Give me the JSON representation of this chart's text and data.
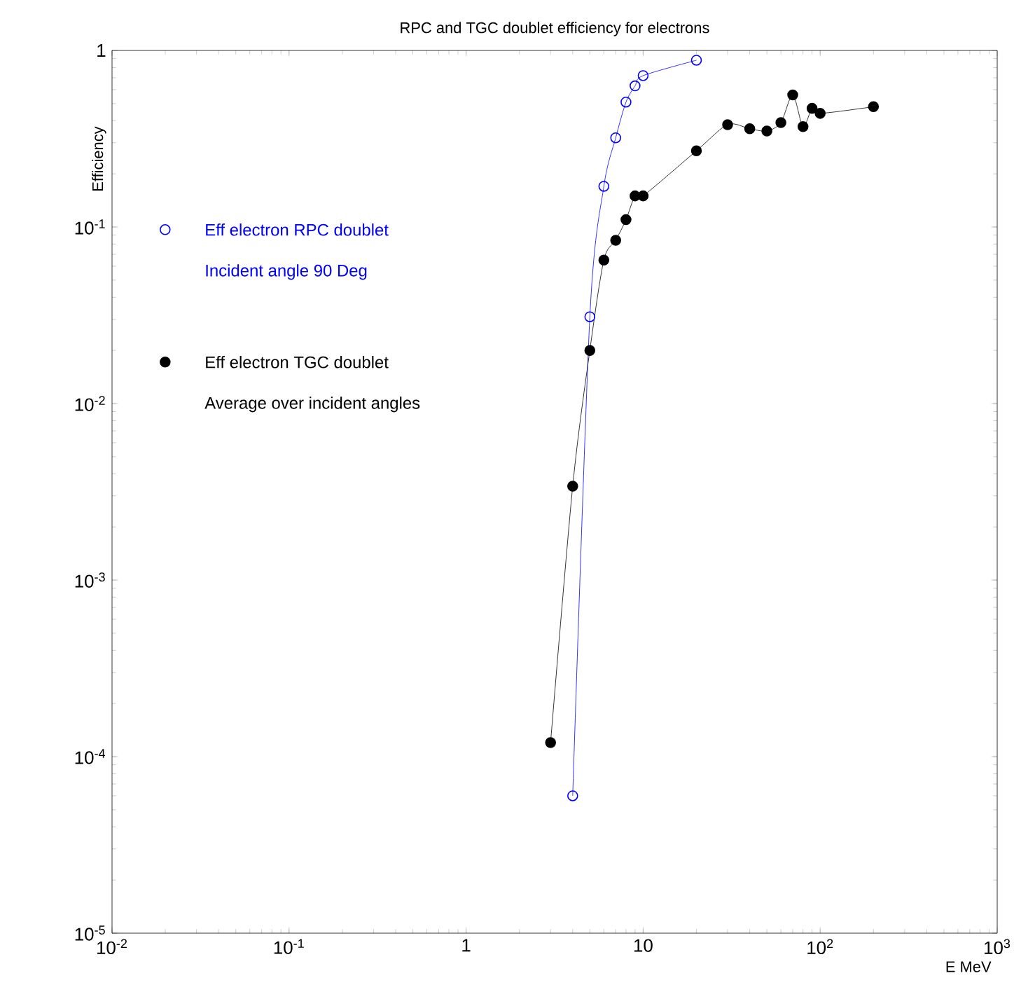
{
  "chart_data": {
    "type": "line",
    "title": "RPC and TGC doublet efficiency for electrons",
    "xlabel": "E MeV",
    "ylabel": "Efficiency",
    "log": "xy",
    "xlim": [
      0.01,
      1000
    ],
    "ylim": [
      1e-05,
      1
    ],
    "xticks": [
      {
        "value": 0.01,
        "label": "10$^{-2}$"
      },
      {
        "value": 0.1,
        "label": "10$^{-1}$"
      },
      1,
      10,
      {
        "value": 100,
        "label": "10$^{2}$"
      },
      {
        "value": 1000,
        "label": "10$^{3}$"
      }
    ],
    "yticks": [
      {
        "value": 1e-05,
        "label": "10$^{-5}$"
      },
      {
        "value": 0.0001,
        "label": "10$^{-4}$"
      },
      {
        "value": 0.001,
        "label": "10$^{-3}$"
      },
      {
        "value": 0.01,
        "label": "10$^{-2}$"
      },
      {
        "value": 0.1,
        "label": "10$^{-1}$"
      },
      1
    ],
    "marker": "circle",
    "legend": "top left",
    "grid": false,
    "series": [
      {
        "name": "Eff electron RPC doublet",
        "color": "#0000ff",
        "x": [
          4,
          5,
          6,
          7,
          8,
          9,
          10,
          20
        ],
        "values": [
          6e-05,
          0.031,
          0.17,
          0.32,
          0.51,
          0.63,
          0.72,
          0.88
        ]
      },
      {
        "name": "Eff electron TGC doublet",
        "color": "#000000",
        "x": [
          3,
          4,
          5,
          6,
          7,
          8,
          9,
          10,
          20,
          30,
          40,
          50,
          60,
          70,
          80,
          90,
          100,
          200
        ],
        "values": [
          0.00012,
          0.0034,
          0.02,
          0.065,
          0.084,
          0.11,
          0.15,
          0.15,
          0.27,
          0.38,
          0.36,
          0.35,
          0.39,
          0.56,
          0.37,
          0.47,
          0.44,
          0.48
        ]
      }
    ],
    "annotations": [
      "Incident angle 90 Deg",
      "Average over incident angles"
    ]
  }
}
